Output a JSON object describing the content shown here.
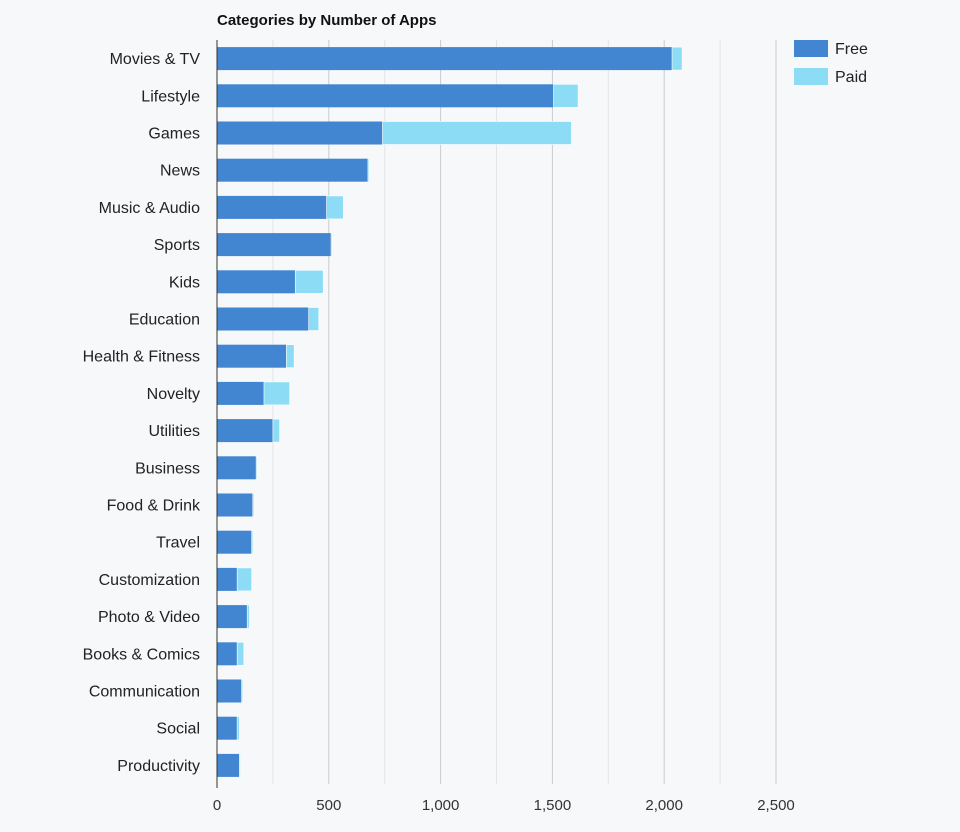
{
  "chart_data": {
    "type": "bar",
    "orientation": "horizontal",
    "stacked": true,
    "title": "Categories by Number of Apps",
    "xlabel": "",
    "ylabel": "",
    "xlim": [
      0,
      2500
    ],
    "x_ticks": [
      0,
      500,
      1000,
      1500,
      2000,
      2500
    ],
    "x_tick_labels": [
      "0",
      "500",
      "1,000",
      "1,500",
      "2,000",
      "2,500"
    ],
    "grid": true,
    "legend_position": "top-right",
    "categories": [
      "Movies & TV",
      "Lifestyle",
      "Games",
      "News",
      "Music & Audio",
      "Sports",
      "Kids",
      "Education",
      "Health & Fitness",
      "Novelty",
      "Utilities",
      "Business",
      "Food & Drink",
      "Travel",
      "Customization",
      "Photo & Video",
      "Books & Comics",
      "Communication",
      "Social",
      "Productivity"
    ],
    "series": [
      {
        "name": "Free",
        "color": "#4285d0",
        "values": [
          2035,
          1505,
          740,
          675,
          490,
          510,
          350,
          410,
          310,
          210,
          250,
          175,
          160,
          155,
          90,
          135,
          90,
          110,
          90,
          100
        ]
      },
      {
        "name": "Paid",
        "color": "#8ddcf6",
        "values": [
          45,
          110,
          845,
          5,
          75,
          5,
          125,
          45,
          35,
          115,
          30,
          5,
          5,
          5,
          65,
          10,
          30,
          5,
          10,
          5
        ]
      }
    ]
  }
}
